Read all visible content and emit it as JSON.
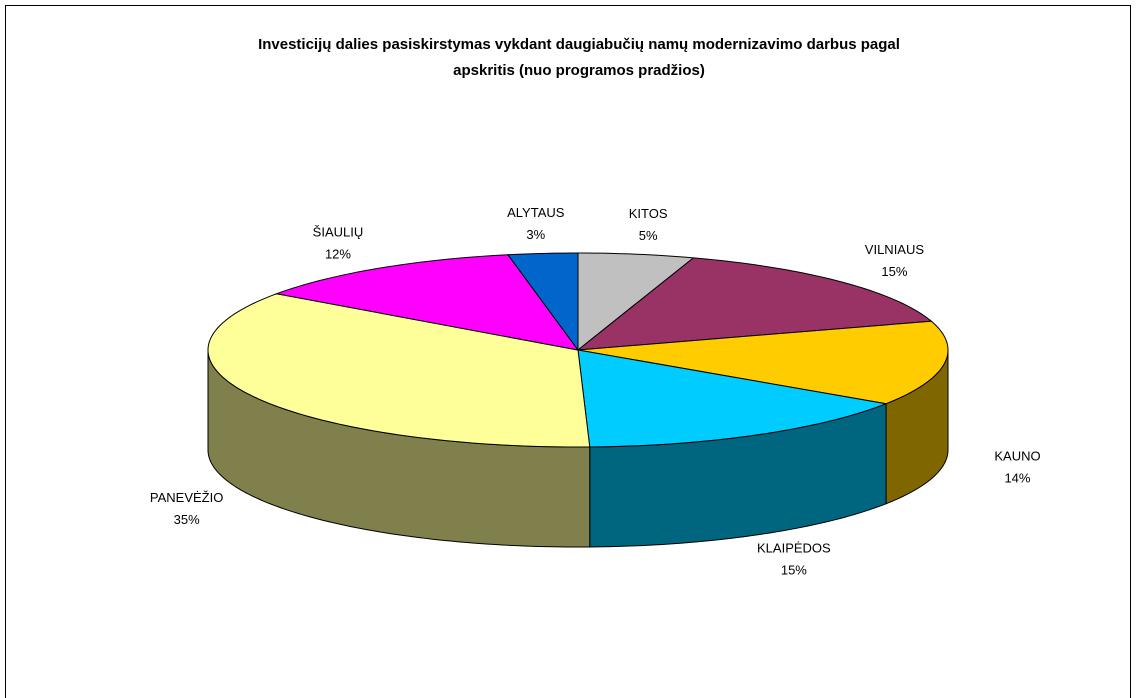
{
  "chart_data": {
    "type": "pie",
    "title": [
      "Investicijų dalies pasiskirstymas vykdant daugiabučių namų modernizavimo darbus pagal",
      "apskritis (nuo programos pradžios)"
    ],
    "categories": [
      "KITOS",
      "VILNIAUS",
      "KAUNO",
      "KLAIPĖDOS",
      "PANEVĖŽIO",
      "ŠIAULIŲ",
      "ALYTAUS"
    ],
    "values": [
      5,
      15,
      14,
      15,
      35,
      12,
      3
    ],
    "value_labels": [
      "5%",
      "15%",
      "14%",
      "15%",
      "35%",
      "12%",
      "3%"
    ],
    "colors": [
      "#c0c0c0",
      "#993366",
      "#ffcc00",
      "#00ccff",
      "#ffff99",
      "#ff00ff",
      "#0066cc"
    ]
  }
}
